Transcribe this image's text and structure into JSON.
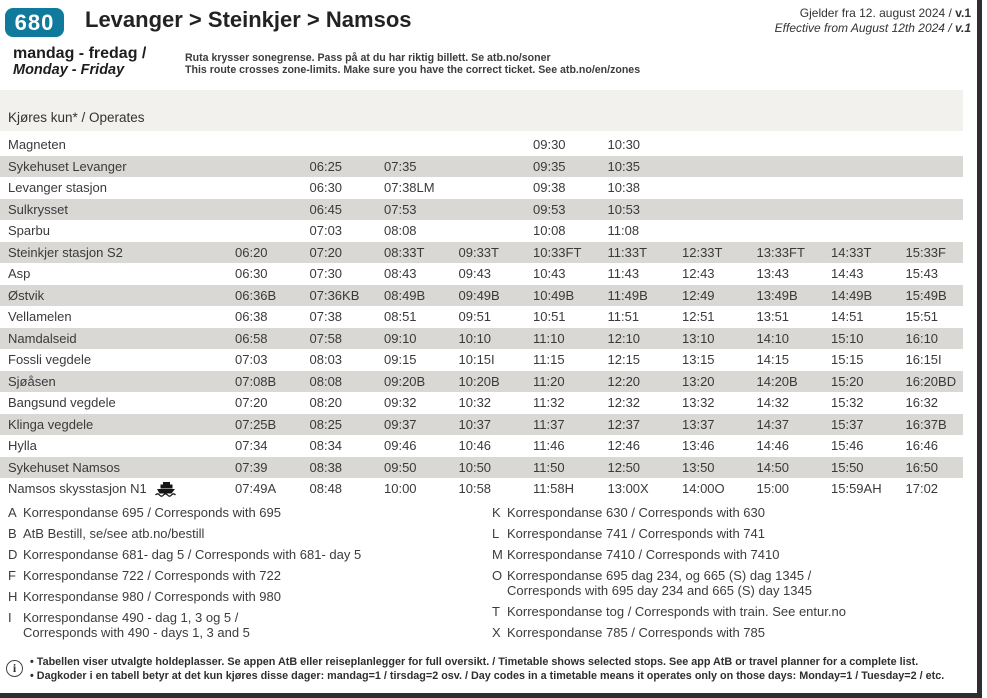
{
  "page": {
    "route_number": "680",
    "title": "Levanger > Steinkjer > Namsos",
    "validity_no": "Gjelder fra 12. august 2024 / ",
    "validity_en": "Effective from August 12th 2024 / ",
    "version": "v.1",
    "days_no": "mandag - fredag /",
    "days_en": "Monday - Friday",
    "zone_note_no": "Ruta krysser sonegrense. Pass på at du har riktig billett. Se atb.no/soner",
    "zone_note_en": "This route crosses zone-limits. Make sure you have the correct ticket. See atb.no/en/zones"
  },
  "timetable": {
    "operates_label": "Kjøres kun* / Operates",
    "stops": [
      {
        "name": "Magneten",
        "ferry": false,
        "times": [
          "",
          "",
          "",
          "",
          "09:30",
          "10:30",
          "",
          "",
          "",
          ""
        ]
      },
      {
        "name": "Sykehuset Levanger",
        "ferry": false,
        "times": [
          "",
          "06:25",
          "07:35",
          "",
          "09:35",
          "10:35",
          "",
          "",
          "",
          ""
        ]
      },
      {
        "name": "Levanger stasjon",
        "ferry": false,
        "times": [
          "",
          "06:30",
          "07:38LM",
          "",
          "09:38",
          "10:38",
          "",
          "",
          "",
          ""
        ]
      },
      {
        "name": "Sulkrysset",
        "ferry": false,
        "times": [
          "",
          "06:45",
          "07:53",
          "",
          "09:53",
          "10:53",
          "",
          "",
          "",
          ""
        ]
      },
      {
        "name": "Sparbu",
        "ferry": false,
        "times": [
          "",
          "07:03",
          "08:08",
          "",
          "10:08",
          "11:08",
          "",
          "",
          "",
          ""
        ]
      },
      {
        "name": "Steinkjer stasjon S2",
        "ferry": false,
        "times": [
          "06:20",
          "07:20",
          "08:33T",
          "09:33T",
          "10:33FT",
          "11:33T",
          "12:33T",
          "13:33FT",
          "14:33T",
          "15:33F"
        ]
      },
      {
        "name": "Asp",
        "ferry": false,
        "times": [
          "06:30",
          "07:30",
          "08:43",
          "09:43",
          "10:43",
          "11:43",
          "12:43",
          "13:43",
          "14:43",
          "15:43"
        ]
      },
      {
        "name": "Østvik",
        "ferry": false,
        "times": [
          "06:36B",
          "07:36KB",
          "08:49B",
          "09:49B",
          "10:49B",
          "11:49B",
          "12:49",
          "13:49B",
          "14:49B",
          "15:49B"
        ]
      },
      {
        "name": "Vellamelen",
        "ferry": false,
        "times": [
          "06:38",
          "07:38",
          "08:51",
          "09:51",
          "10:51",
          "11:51",
          "12:51",
          "13:51",
          "14:51",
          "15:51"
        ]
      },
      {
        "name": "Namdalseid",
        "ferry": false,
        "times": [
          "06:58",
          "07:58",
          "09:10",
          "10:10",
          "11:10",
          "12:10",
          "13:10",
          "14:10",
          "15:10",
          "16:10"
        ]
      },
      {
        "name": "Fossli vegdele",
        "ferry": false,
        "times": [
          "07:03",
          "08:03",
          "09:15",
          "10:15I",
          "11:15",
          "12:15",
          "13:15",
          "14:15",
          "15:15",
          "16:15I"
        ]
      },
      {
        "name": "Sjøåsen",
        "ferry": false,
        "times": [
          "07:08B",
          "08:08",
          "09:20B",
          "10:20B",
          "11:20",
          "12:20",
          "13:20",
          "14:20B",
          "15:20",
          "16:20BD"
        ]
      },
      {
        "name": "Bangsund vegdele",
        "ferry": false,
        "times": [
          "07:20",
          "08:20",
          "09:32",
          "10:32",
          "11:32",
          "12:32",
          "13:32",
          "14:32",
          "15:32",
          "16:32"
        ]
      },
      {
        "name": "Klinga vegdele",
        "ferry": false,
        "times": [
          "07:25B",
          "08:25",
          "09:37",
          "10:37",
          "11:37",
          "12:37",
          "13:37",
          "14:37",
          "15:37",
          "16:37B"
        ]
      },
      {
        "name": "Hylla",
        "ferry": false,
        "times": [
          "07:34",
          "08:34",
          "09:46",
          "10:46",
          "11:46",
          "12:46",
          "13:46",
          "14:46",
          "15:46",
          "16:46"
        ]
      },
      {
        "name": "Sykehuset Namsos",
        "ferry": false,
        "times": [
          "07:39",
          "08:38",
          "09:50",
          "10:50",
          "11:50",
          "12:50",
          "13:50",
          "14:50",
          "15:50",
          "16:50"
        ]
      },
      {
        "name": "Namsos skysstasjon N1",
        "ferry": true,
        "times": [
          "07:49A",
          "08:48",
          "10:00",
          "10:58",
          "11:58H",
          "13:00X",
          "14:00O",
          "15:00",
          "15:59AH",
          "17:02"
        ]
      }
    ]
  },
  "footnotes": {
    "left": [
      {
        "code": "A",
        "text": "Korrespondanse 695 / Corresponds with 695"
      },
      {
        "code": "B",
        "text": "AtB Bestill, se/see atb.no/bestill"
      },
      {
        "code": "D",
        "text": "Korrespondanse 681- dag 5 / Corresponds with 681- day 5"
      },
      {
        "code": "F",
        "text": "Korrespondanse 722 / Corresponds with 722"
      },
      {
        "code": "H",
        "text": "Korrespondanse 980 / Corresponds with 980"
      },
      {
        "code": "I",
        "text": "Korrespondanse 490 - dag 1, 3 og 5 /\nCorresponds with 490 - days 1, 3 and 5"
      }
    ],
    "right": [
      {
        "code": "K",
        "text": "Korrespondanse 630 / Corresponds with 630"
      },
      {
        "code": "L",
        "text": "Korrespondanse 741 / Corresponds with 741"
      },
      {
        "code": "M",
        "text": "Korrespondanse 7410 / Corresponds with 7410"
      },
      {
        "code": "O",
        "text": "Korrespondanse 695 dag 234, og 665 (S) dag 1345 /\nCorresponds with 695 day 234 and 665 (S) day 1345"
      },
      {
        "code": "T",
        "text": "Korrespondanse tog / Corresponds with train. See entur.no"
      },
      {
        "code": "X",
        "text": "Korrespondanse 785 / Corresponds with 785"
      }
    ]
  },
  "footer": {
    "line1": "• Tabellen viser utvalgte holdeplasser. Se appen AtB eller reiseplanlegger for full oversikt.  / Timetable shows selected stops. See app AtB or travel planner for a complete list.",
    "line2": "• Dagkoder i en tabell betyr at det kun kjøres disse dager: mandag=1 / tirsdag=2 osv. / Day codes in a timetable means it operates only on those days: Monday=1 / Tuesday=2 / etc."
  },
  "colors": {
    "brand_teal": "#0f7a9c",
    "zebra_gray": "#d9d8d5",
    "band_gray": "#f2f1ee",
    "page_edge": "#2e2e2e"
  }
}
